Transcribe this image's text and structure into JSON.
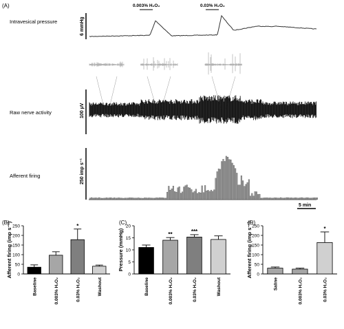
{
  "figure": {
    "panel_a_label": "(A)",
    "row_labels": [
      "Intravesical pressure",
      "Raw nerve activity",
      "Afferent firing"
    ],
    "scalebars": {
      "pressure": "6 mmHg",
      "nerve": "100 µV",
      "firing": "250 imp s⁻¹",
      "time": "5 min"
    },
    "stimuli": [
      "0.003% H₂O₂",
      "0.03% H₂O₂"
    ]
  },
  "chart_data": [
    {
      "panel": "(B)",
      "type": "bar",
      "ylabel": "Afferent firing (imp s⁻¹)",
      "ylim": [
        0,
        250
      ],
      "yticks": [
        0,
        50,
        100,
        150,
        200,
        250
      ],
      "categories": [
        "Baseline",
        "0.003% H₂O₂",
        "0.03% H₂O₂",
        "Washout"
      ],
      "values": [
        35,
        97,
        178,
        40
      ],
      "errors": [
        12,
        18,
        55,
        6
      ],
      "colors": [
        "#000000",
        "#a6a6a6",
        "#7f7f7f",
        "#d0d0d0"
      ],
      "significance": [
        "",
        "",
        "*",
        ""
      ]
    },
    {
      "panel": "(C)",
      "type": "bar",
      "ylabel": "Pressure (mmHg)",
      "ylim": [
        0,
        20
      ],
      "yticks": [
        0,
        5,
        10,
        15,
        20
      ],
      "categories": [
        "Baseline",
        "0.003% H₂O₂",
        "0.03% H₂O₂",
        "Washout"
      ],
      "values": [
        11,
        14,
        15.3,
        14.3
      ],
      "errors": [
        1.0,
        1.1,
        1.0,
        1.5
      ],
      "colors": [
        "#000000",
        "#a6a6a6",
        "#7f7f7f",
        "#d0d0d0"
      ],
      "significance": [
        "",
        "**",
        "***",
        ""
      ]
    },
    {
      "panel": "(D)",
      "type": "bar",
      "ylabel": "Afferent firing (imp s⁻¹)",
      "ylim": [
        0,
        250
      ],
      "yticks": [
        0,
        50,
        100,
        150,
        200,
        250
      ],
      "categories": [
        "Saline",
        "0.003% H₂O₂",
        "0.03% H₂O₂"
      ],
      "values": [
        30,
        25,
        163
      ],
      "errors": [
        6,
        5,
        55
      ],
      "colors": [
        "#a6a6a6",
        "#a6a6a6",
        "#d0d0d0"
      ],
      "significance": [
        "",
        "",
        "*"
      ]
    }
  ]
}
